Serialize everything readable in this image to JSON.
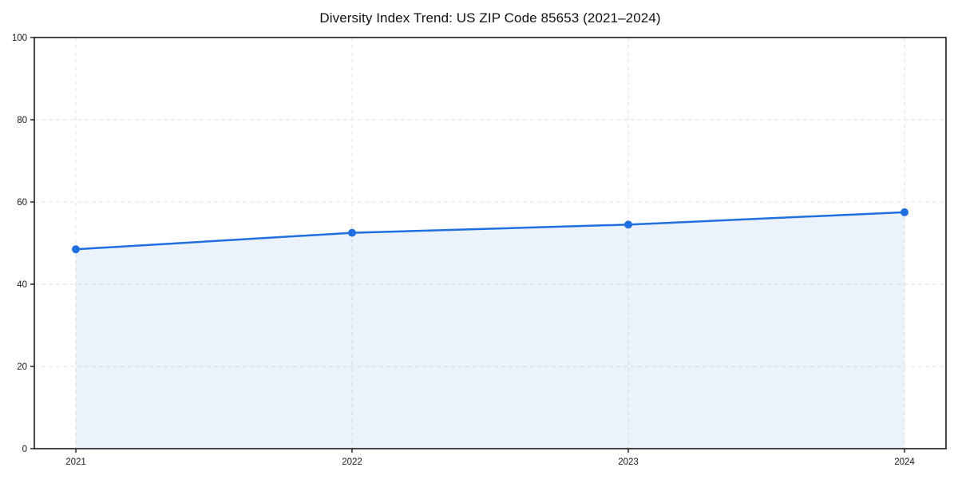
{
  "chart_data": {
    "type": "line",
    "title": "Diversity Index Trend: US ZIP Code 85653 (2021–2024)",
    "categories": [
      "2021",
      "2022",
      "2023",
      "2024"
    ],
    "series": [
      {
        "name": "Diversity Index",
        "values": [
          48.5,
          52.5,
          54.5,
          57.5
        ]
      }
    ],
    "xlabel": "",
    "ylabel": "",
    "ylim": [
      0,
      100
    ],
    "yticks": [
      0,
      20,
      40,
      60,
      80,
      100
    ],
    "grid": true,
    "grid_style": "dashed",
    "legend": false,
    "marker": "circle",
    "colors": {
      "line": "#1f6fe0",
      "marker": "#1f6fe0",
      "area_fill": "rgba(31, 111, 224, 0.09)",
      "spine": "#1a1a1a",
      "gridline": "#e2e2e2",
      "tick_label": "#1a1a1a",
      "background": "#ffffff"
    }
  }
}
